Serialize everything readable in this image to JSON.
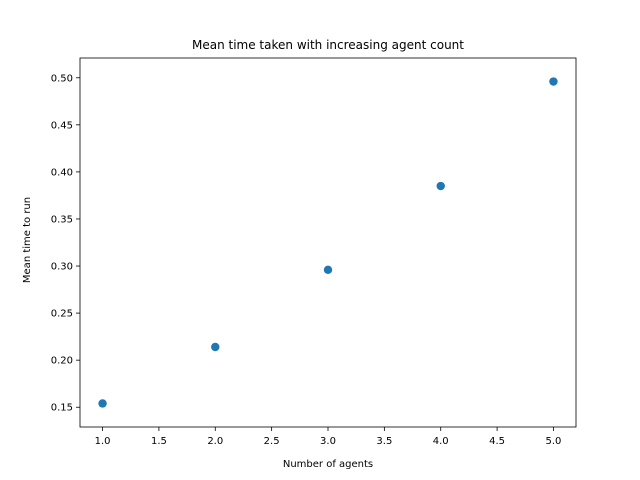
{
  "chart_data": {
    "type": "scatter",
    "title": "Mean time taken with increasing agent count",
    "xlabel": "Number of agents",
    "ylabel": "Mean time to run",
    "x": [
      1.0,
      2.0,
      3.0,
      4.0,
      5.0
    ],
    "y": [
      0.154,
      0.214,
      0.296,
      0.385,
      0.496
    ],
    "xlim": [
      0.8,
      5.2
    ],
    "ylim": [
      0.129,
      0.521
    ],
    "xticks": [
      1.0,
      1.5,
      2.0,
      2.5,
      3.0,
      3.5,
      4.0,
      4.5,
      5.0
    ],
    "xtick_labels": [
      "1.0",
      "1.5",
      "2.0",
      "2.5",
      "3.0",
      "3.5",
      "4.0",
      "4.5",
      "5.0"
    ],
    "yticks": [
      0.15,
      0.2,
      0.25,
      0.3,
      0.35,
      0.4,
      0.45,
      0.5
    ],
    "ytick_labels": [
      "0.15",
      "0.20",
      "0.25",
      "0.30",
      "0.35",
      "0.40",
      "0.45",
      "0.50"
    ],
    "grid": false,
    "legend": "none",
    "marker_color": "#1f77b4"
  }
}
